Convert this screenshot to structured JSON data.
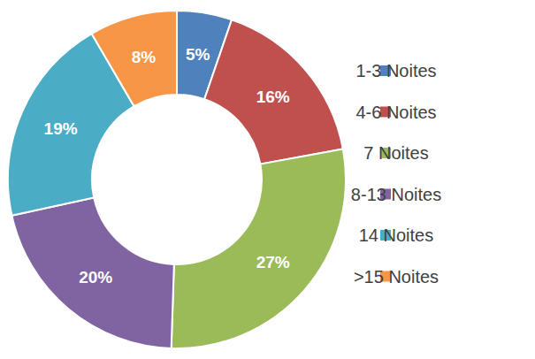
{
  "chart_data": {
    "type": "pie",
    "categories": [
      "1-3 Noites",
      "4-6 Noites",
      "7 Noites",
      "8-13 Noites",
      "14 Noites",
      ">15 Noites"
    ],
    "values": [
      5,
      16,
      27,
      20,
      19,
      8
    ],
    "value_labels": [
      "5%",
      "16%",
      "27%",
      "20%",
      "19%",
      "8%"
    ],
    "colors": [
      "#4f81bd",
      "#c0504d",
      "#9bbb59",
      "#8064a2",
      "#4bacc6",
      "#f79646"
    ],
    "data_labels": true,
    "legend": "right"
  }
}
